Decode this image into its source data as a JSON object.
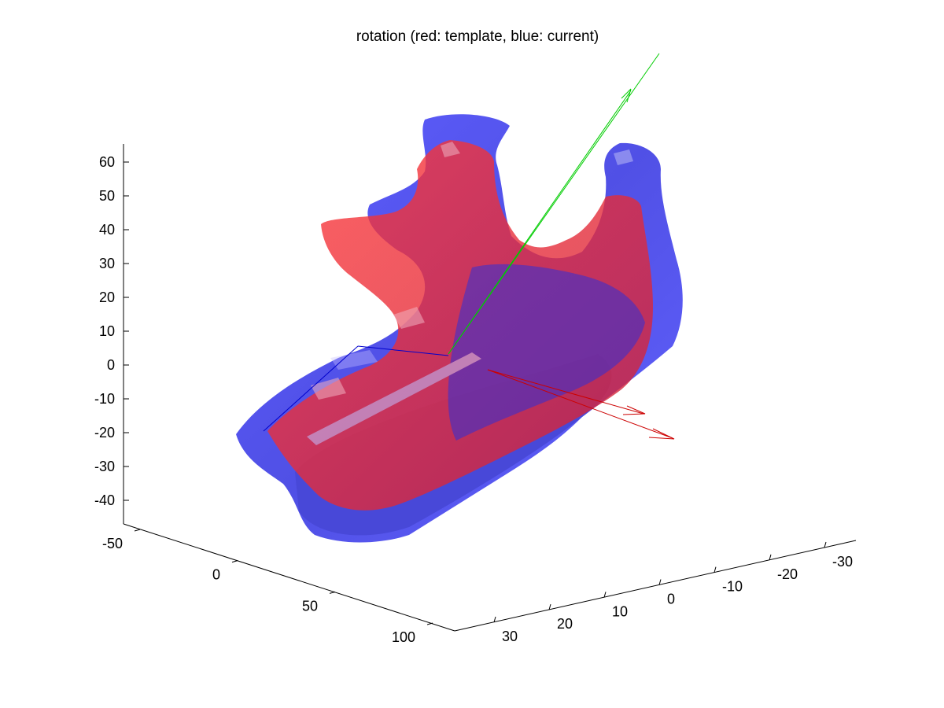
{
  "chart_data": {
    "type": "surface3d",
    "title": "rotation (red: template, blue: current)",
    "series": [
      {
        "name": "template",
        "color": "#ff0000"
      },
      {
        "name": "current",
        "color": "#0000ff"
      }
    ],
    "axes": {
      "z": {
        "ticks": [
          60,
          50,
          40,
          30,
          20,
          10,
          0,
          -10,
          -20,
          -30,
          -40
        ],
        "labels": [
          "60",
          "50",
          "40",
          "30",
          "20",
          "10",
          "0",
          "-10",
          "-20",
          "-30",
          "-40"
        ],
        "range": [
          -45,
          65
        ]
      },
      "x": {
        "ticks": [
          -50,
          0,
          50,
          100
        ],
        "labels": [
          "-50",
          "0",
          "50",
          "100"
        ],
        "range": [
          -60,
          110
        ]
      },
      "y": {
        "ticks": [
          30,
          20,
          10,
          0,
          -10,
          -20,
          -30
        ],
        "labels": [
          "30",
          "20",
          "10",
          "0",
          "-10",
          "-20",
          "-30"
        ],
        "range": [
          -35,
          38
        ]
      }
    },
    "vectors": [
      {
        "name": "green-axis",
        "color": "#00cc00"
      },
      {
        "name": "red-axis",
        "color": "#cc0000"
      },
      {
        "name": "blue-axis",
        "color": "#0000cc"
      }
    ],
    "grid": false
  }
}
